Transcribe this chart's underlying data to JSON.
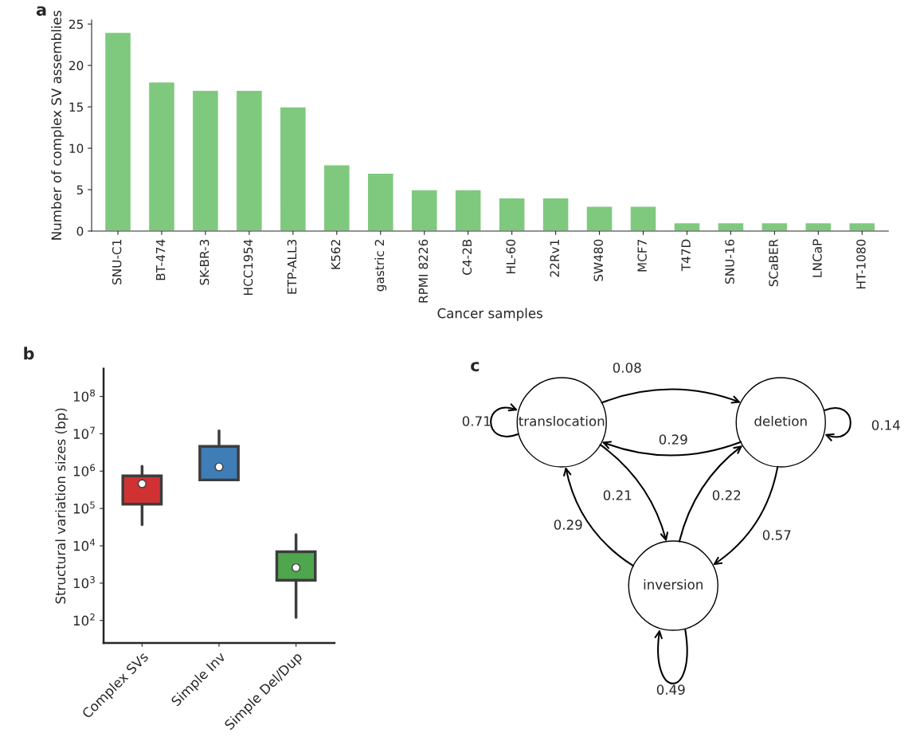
{
  "chart_data": [
    {
      "type": "bar",
      "title": "a",
      "xlabel": "Cancer samples",
      "ylabel": "Number of complex SV assemblies",
      "categories": [
        "SNU-C1",
        "BT-474",
        "SK-BR-3",
        "HCC1954",
        "ETP-ALL3",
        "K562",
        "gastric 2",
        "RPMI 8226",
        "C4-2B",
        "HL-60",
        "22Rv1",
        "SW480",
        "MCF7",
        "T47D",
        "SNU-16",
        "SCaBER",
        "LNCaP",
        "HT-1080"
      ],
      "values": [
        24,
        18,
        17,
        17,
        15,
        8,
        7,
        5,
        5,
        4,
        4,
        3,
        3,
        1,
        1,
        1,
        1,
        1
      ],
      "color": "#7fc97f",
      "ylim": [
        0,
        25.5
      ],
      "yticks": [
        0,
        5,
        10,
        15,
        20,
        25
      ],
      "grid": false,
      "legend": false
    },
    {
      "type": "box",
      "title": "b",
      "ylabel": "Structural variation sizes (bp)",
      "log": "y",
      "categories": [
        "Complex SVs",
        "Simple Inv",
        "Simple Del/Dup"
      ],
      "colors": [
        "#d03234",
        "#3f7db6",
        "#4fa64d"
      ],
      "boxes": [
        {
          "low": 37000,
          "q1": 130000,
          "median": 460000,
          "q3": 750000,
          "high": 1350000
        },
        {
          "low": 580000,
          "q1": 580000,
          "median": 1300000,
          "q3": 4600000,
          "high": 12000000
        },
        {
          "low": 120,
          "q1": 1200,
          "median": 2600,
          "q3": 6900,
          "high": 20000
        }
      ],
      "ylim": [
        25,
        550000000
      ],
      "yticks": [
        {
          "value": 100,
          "label": "10$^{2}$"
        },
        {
          "value": 1000,
          "label": "10$^{3}$"
        },
        {
          "value": 10000,
          "label": "10$^{4}$"
        },
        {
          "value": 100000,
          "label": "10$^{5}$"
        },
        {
          "value": 1000000,
          "label": "10$^{6}$"
        },
        {
          "value": 10000000,
          "label": "10$^{7}$"
        },
        {
          "value": 100000000,
          "label": "10$^{8}$"
        }
      ],
      "grid": false
    },
    {
      "type": "other",
      "title": "c",
      "categories": [
        "translocation",
        "deletion",
        "inversion"
      ],
      "annotations": [
        "0.71",
        "0.08",
        "0.29",
        "0.14",
        "0.21",
        "0.22",
        "0.29",
        "0.57",
        "0.49"
      ]
    }
  ]
}
